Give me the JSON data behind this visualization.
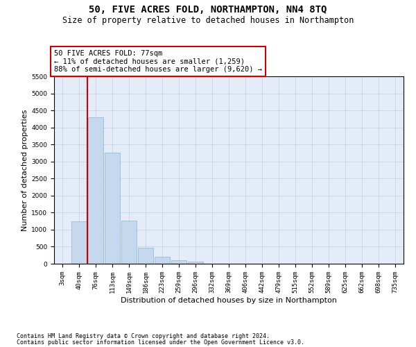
{
  "title": "50, FIVE ACRES FOLD, NORTHAMPTON, NN4 8TQ",
  "subtitle": "Size of property relative to detached houses in Northampton",
  "xlabel": "Distribution of detached houses by size in Northampton",
  "ylabel": "Number of detached properties",
  "bar_color": "#c5d8ee",
  "bar_edge_color": "#8ab4d8",
  "grid_color": "#c8d4e4",
  "background_color": "#e4ecf8",
  "categories": [
    "3sqm",
    "40sqm",
    "76sqm",
    "113sqm",
    "149sqm",
    "186sqm",
    "223sqm",
    "259sqm",
    "296sqm",
    "332sqm",
    "369sqm",
    "406sqm",
    "442sqm",
    "479sqm",
    "515sqm",
    "552sqm",
    "589sqm",
    "625sqm",
    "662sqm",
    "698sqm",
    "735sqm"
  ],
  "values": [
    0,
    1250,
    4300,
    3250,
    1270,
    475,
    200,
    100,
    70,
    0,
    0,
    0,
    0,
    0,
    0,
    0,
    0,
    0,
    0,
    0,
    0
  ],
  "ylim": [
    0,
    5500
  ],
  "yticks": [
    0,
    500,
    1000,
    1500,
    2000,
    2500,
    3000,
    3500,
    4000,
    4500,
    5000,
    5500
  ],
  "property_line_x": 1.5,
  "annotation_text": "50 FIVE ACRES FOLD: 77sqm\n← 11% of detached houses are smaller (1,259)\n88% of semi-detached houses are larger (9,620) →",
  "footer_line1": "Contains HM Land Registry data © Crown copyright and database right 2024.",
  "footer_line2": "Contains public sector information licensed under the Open Government Licence v3.0.",
  "red_color": "#cc0000",
  "title_fontsize": 10,
  "subtitle_fontsize": 8.5,
  "axis_label_fontsize": 8,
  "tick_fontsize": 6.5,
  "annotation_fontsize": 7.5,
  "footer_fontsize": 6
}
